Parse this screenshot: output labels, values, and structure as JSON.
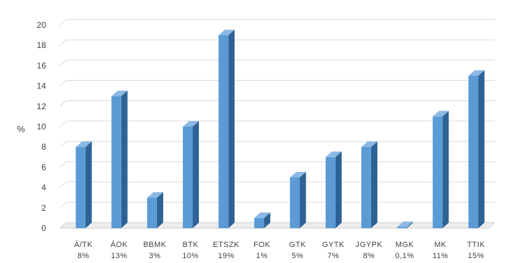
{
  "chart_data": {
    "type": "bar",
    "ylabel": "%",
    "ylim": [
      0,
      20
    ],
    "yticks": [
      0,
      2,
      4,
      6,
      8,
      10,
      12,
      14,
      16,
      18,
      20
    ],
    "grid": true,
    "categories": [
      "Á/TK",
      "ÁOK",
      "BBMK",
      "BTK",
      "ETSZK",
      "FOK",
      "GTK",
      "GYTK",
      "JGYPK",
      "MGK",
      "MK",
      "TTIK"
    ],
    "labels": [
      "8%",
      "13%",
      "3%",
      "10%",
      "19%",
      "1%",
      "5%",
      "7%",
      "8%",
      "0,1%",
      "11%",
      "15%"
    ],
    "values": [
      8,
      13,
      3,
      10,
      19,
      1,
      5,
      7,
      8,
      0.1,
      11,
      15
    ],
    "colors": {
      "front": "#5b9bd5",
      "side": "#2e6295",
      "top": "#8bb8e4",
      "grid": "#d9d9d9",
      "floor": "#d0d0d0"
    }
  }
}
